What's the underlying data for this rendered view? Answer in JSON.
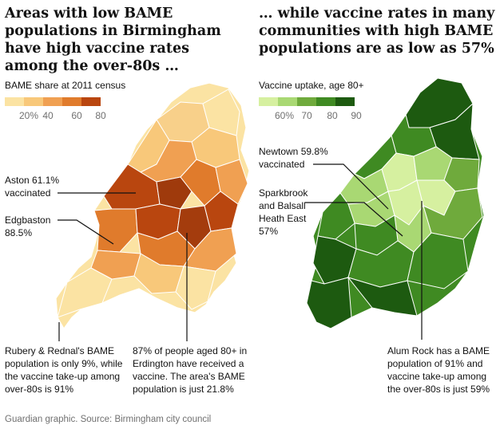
{
  "left_panel": {
    "title": "Areas with low BAME populations in Birmingham have high vaccine rates among the over-80s …",
    "legend_title": "BAME share at 2011 census",
    "legend_colors": [
      "#fbe3a3",
      "#f8c87a",
      "#f0a052",
      "#e07b2c",
      "#b9460f"
    ],
    "legend_ticks": [
      "20%",
      "40",
      "60",
      "80"
    ],
    "annotations": {
      "aston": "Aston 61.1% vaccinated",
      "edgbaston": "Edgbaston 88.5%",
      "rubery": "Rubery & Rednal's BAME population is only 9%, while the vaccine take-up among over-80s is 91%",
      "erdington": "87% of people aged 80+ in Erdington have received a vaccine. The area's BAME population is just 21.8%"
    }
  },
  "right_panel": {
    "title": "… while vaccine rates in many communities with high BAME populations are as low as 57%",
    "legend_title": "Vaccine uptake, age 80+",
    "legend_colors": [
      "#d6f0a0",
      "#a9d873",
      "#6faa3c",
      "#3f8a22",
      "#1d5a10"
    ],
    "legend_ticks": [
      "60%",
      "70",
      "80",
      "90"
    ],
    "annotations": {
      "newtown": "Newtown 59.8% vaccinated",
      "sparkbrook": "Sparkbrook and Balsall Heath East 57%",
      "alum_rock": "Alum Rock has a BAME population of 91% and vaccine take-up among the over-80s is just 59%"
    }
  },
  "source": "Guardian graphic. Source: Birmingham city council"
}
